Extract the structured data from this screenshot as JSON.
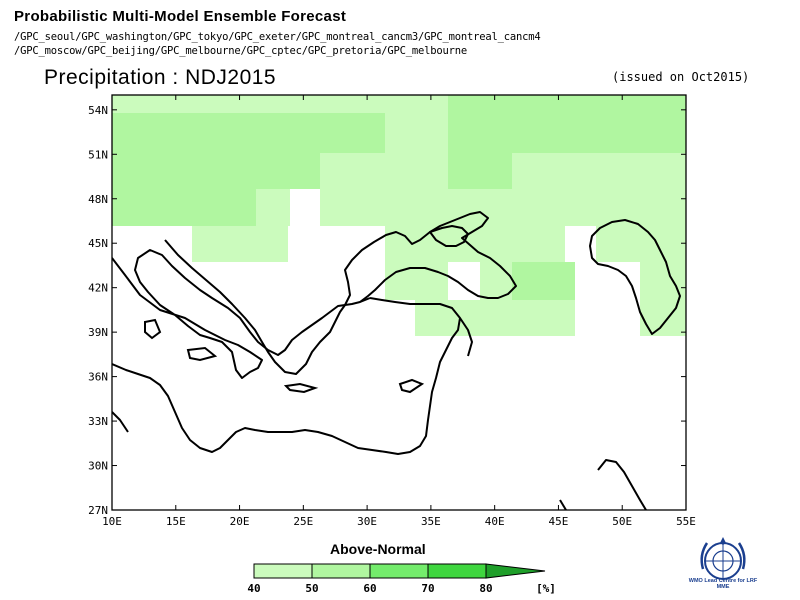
{
  "header": {
    "title": "Probabilistic Multi-Model Ensemble Forecast",
    "models_line1": "/GPC_seoul/GPC_washington/GPC_tokyo/GPC_exeter/GPC_montreal_cancm3/GPC_montreal_cancm4",
    "models_line2": "/GPC_moscow/GPC_beijing/GPC_melbourne/GPC_cptec/GPC_pretoria/GPC_melbourne"
  },
  "map": {
    "title": "Precipitation : NDJ2015",
    "issued": "(issued on Oct2015)",
    "lon_labels": [
      "10E",
      "15E",
      "20E",
      "25E",
      "30E",
      "35E",
      "40E",
      "45E",
      "50E",
      "55E"
    ],
    "lat_labels": [
      "27N",
      "30N",
      "33N",
      "36N",
      "39N",
      "42N",
      "45N",
      "48N",
      "51N",
      "54N"
    ],
    "lon_range": [
      10,
      55
    ],
    "lat_range": [
      27,
      55
    ]
  },
  "legend": {
    "title": "Above-Normal",
    "ticks": [
      "40",
      "50",
      "60",
      "70",
      "80"
    ],
    "unit": "[%]",
    "colors": [
      "#cbfbbd",
      "#b0f6a0",
      "#74ec6c",
      "#3fd63f",
      "#1f9f2a"
    ]
  },
  "logo": {
    "icon": "wmo-emblem-icon",
    "text": "WMO Lead Centre for LRF MME"
  }
}
